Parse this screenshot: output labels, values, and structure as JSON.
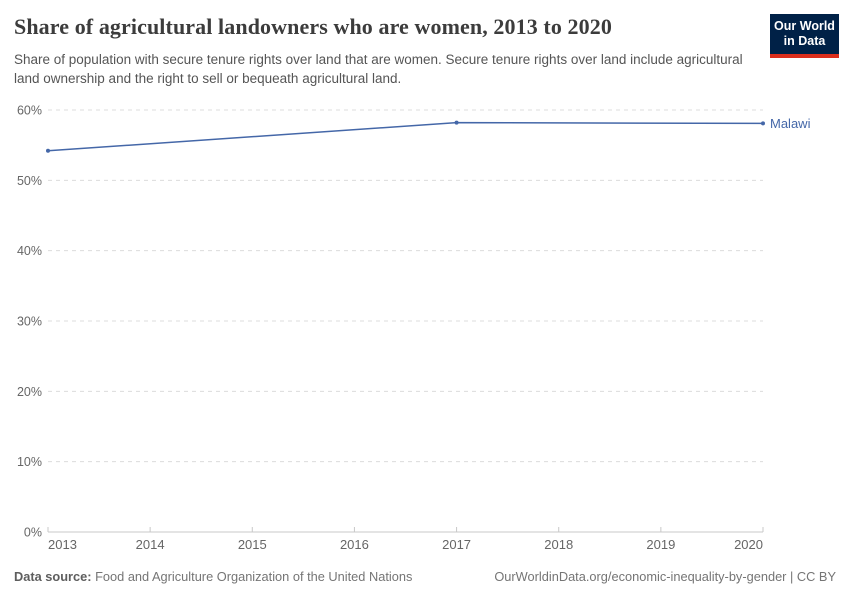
{
  "header": {
    "title": "Share of agricultural landowners who are women, 2013 to 2020",
    "subtitle": "Share of population with secure tenure rights over land that are women. Secure tenure rights over land include agricultural land ownership and the right to sell or bequeath agricultural land.",
    "logo": {
      "line1": "Our World",
      "line2": "in Data",
      "bg_color": "#002147",
      "accent_color": "#dc2e1c"
    }
  },
  "chart_data": {
    "type": "line",
    "title": "Share of agricultural landowners who are women, 2013 to 2020",
    "xlabel": "",
    "ylabel": "",
    "xlim": [
      2013,
      2020
    ],
    "ylim": [
      0,
      60
    ],
    "x_ticks": [
      2013,
      2014,
      2015,
      2016,
      2017,
      2018,
      2019,
      2020
    ],
    "y_ticks": [
      0,
      10,
      20,
      30,
      40,
      50,
      60
    ],
    "y_tick_suffix": "%",
    "grid": "horizontal-dashed",
    "legend_position": "end-of-line-label",
    "series": [
      {
        "name": "Malawi",
        "color": "#4467a8",
        "points": [
          {
            "x": 2013,
            "y": 54.2
          },
          {
            "x": 2017,
            "y": 58.2
          },
          {
            "x": 2020,
            "y": 58.1
          }
        ]
      }
    ],
    "colors": {
      "grid": "#dcdcdc",
      "axis": "#c8c8c8",
      "tick_label": "#666666"
    }
  },
  "footer": {
    "datasource_label": "Data source:",
    "datasource": "Food and Agriculture Organization of the United Nations",
    "attribution": "OurWorldinData.org/economic-inequality-by-gender | CC BY"
  }
}
